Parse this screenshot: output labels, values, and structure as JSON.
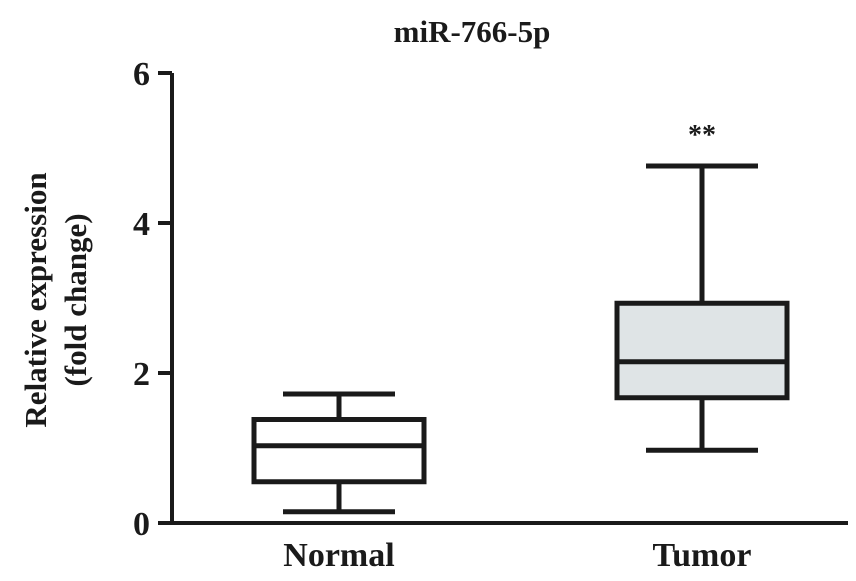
{
  "chart_data": {
    "type": "box",
    "title": "miR-766-5p",
    "ylabel_lines": [
      "Relative expression",
      "(fold change)"
    ],
    "ylim": [
      0,
      6
    ],
    "yticks": [
      0,
      2,
      4,
      6
    ],
    "categories": [
      "Normal",
      "Tumor"
    ],
    "boxes": [
      {
        "name": "Normal",
        "min": 0.15,
        "q1": 0.55,
        "median": 1.03,
        "q3": 1.38,
        "max": 1.72,
        "fill": "#ffffff",
        "annotation": ""
      },
      {
        "name": "Tumor",
        "min": 0.97,
        "q1": 1.67,
        "median": 2.15,
        "q3": 2.93,
        "max": 4.76,
        "fill": "#dfe4e6",
        "annotation": "**"
      }
    ],
    "grid": false,
    "legend": "none"
  }
}
